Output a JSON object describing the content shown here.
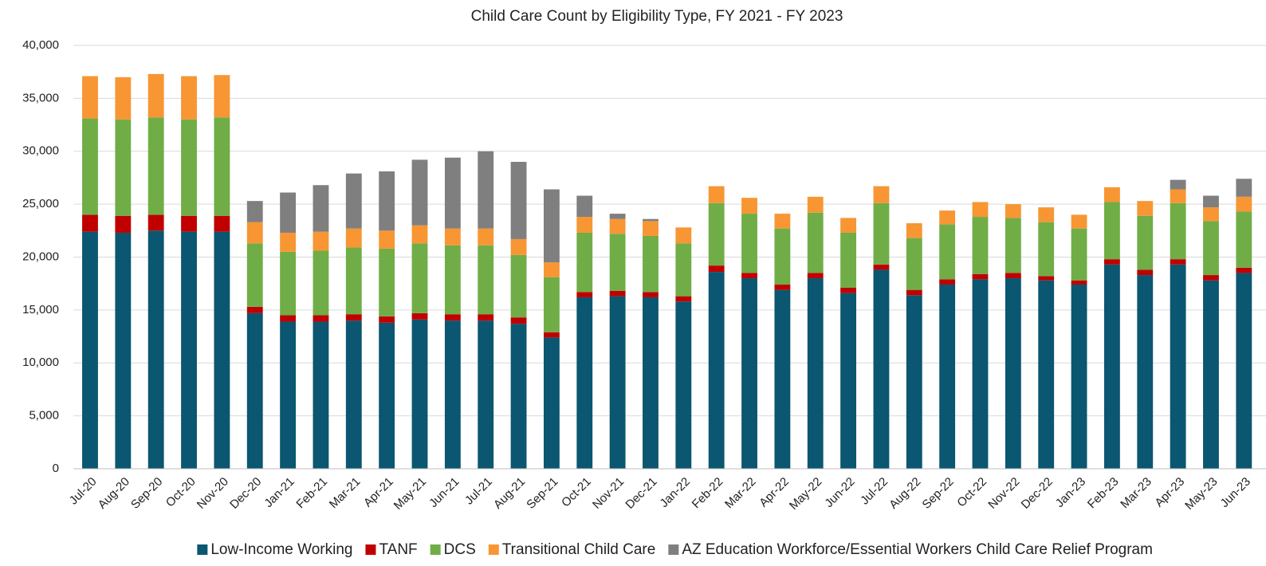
{
  "chart_data": {
    "type": "stacked-bar",
    "title": "Child Care Count by Eligibility Type, FY 2021 - FY 2023",
    "categories": [
      "Jul-20",
      "Aug-20",
      "Sep-20",
      "Oct-20",
      "Nov-20",
      "Dec-20",
      "Jan-21",
      "Feb-21",
      "Mar-21",
      "Apr-21",
      "May-21",
      "Jun-21",
      "Jul-21",
      "Aug-21",
      "Sep-21",
      "Oct-21",
      "Nov-21",
      "Dec-21",
      "Jan-22",
      "Feb-22",
      "Mar-22",
      "Apr-22",
      "May-22",
      "Jun-22",
      "Jul-22",
      "Aug-22",
      "Sep-22",
      "Oct-22",
      "Nov-22",
      "Dec-22",
      "Jan-23",
      "Feb-23",
      "Mar-23",
      "Apr-23",
      "May-23",
      "Jun-23"
    ],
    "series": [
      {
        "name": "Low-Income Working",
        "color": "#0b5670",
        "values": [
          22400,
          22300,
          22500,
          22400,
          22400,
          14700,
          13900,
          13900,
          14000,
          13800,
          14100,
          14000,
          14000,
          13700,
          12400,
          16200,
          16300,
          16200,
          15800,
          18600,
          18000,
          16900,
          18000,
          16600,
          18800,
          16400,
          17400,
          17900,
          18000,
          17800,
          17400,
          19300,
          18300,
          19300,
          17800,
          18500
        ]
      },
      {
        "name": "TANF",
        "color": "#c00000",
        "values": [
          1600,
          1600,
          1500,
          1500,
          1500,
          600,
          600,
          600,
          600,
          600,
          600,
          600,
          600,
          600,
          500,
          500,
          500,
          500,
          500,
          600,
          500,
          500,
          500,
          500,
          500,
          500,
          500,
          500,
          500,
          400,
          400,
          500,
          500,
          500,
          500,
          500
        ]
      },
      {
        "name": "DCS",
        "color": "#70ad47",
        "values": [
          9100,
          9100,
          9200,
          9100,
          9300,
          6000,
          6000,
          6100,
          6300,
          6400,
          6600,
          6500,
          6500,
          5900,
          5200,
          5600,
          5400,
          5300,
          5000,
          5900,
          5600,
          5300,
          5700,
          5200,
          5800,
          4900,
          5200,
          5400,
          5200,
          5100,
          4900,
          5400,
          5100,
          5300,
          5100,
          5300
        ]
      },
      {
        "name": "Transitional Child Care",
        "color": "#f79633",
        "values": [
          4000,
          4000,
          4100,
          4100,
          4000,
          2000,
          1800,
          1800,
          1800,
          1700,
          1700,
          1600,
          1600,
          1500,
          1400,
          1500,
          1400,
          1400,
          1500,
          1600,
          1500,
          1400,
          1500,
          1400,
          1600,
          1400,
          1300,
          1400,
          1300,
          1400,
          1300,
          1400,
          1400,
          1300,
          1300,
          1400
        ]
      },
      {
        "name": "AZ Education Workforce/Essential Workers Child Care Relief Program",
        "color": "#7f7f7f",
        "values": [
          0,
          0,
          0,
          0,
          0,
          2000,
          3800,
          4400,
          5200,
          5600,
          6200,
          6700,
          7300,
          7300,
          6900,
          2000,
          500,
          200,
          0,
          0,
          0,
          0,
          0,
          0,
          0,
          0,
          0,
          0,
          0,
          0,
          0,
          0,
          0,
          900,
          1100,
          1700
        ]
      }
    ],
    "ylim": [
      0,
      40000
    ],
    "yticks": [
      0,
      {
        "value": 5000,
        "label": "5,000"
      },
      {
        "value": 10000,
        "label": "10,000"
      },
      {
        "value": 15000,
        "label": "15,000"
      },
      {
        "value": 20000,
        "label": "20,000"
      },
      {
        "value": 25000,
        "label": "25,000"
      },
      {
        "value": 30000,
        "label": "30,000"
      },
      {
        "value": 35000,
        "label": "35,000"
      },
      {
        "value": 40000,
        "label": "40,000"
      }
    ],
    "grid": true,
    "legend": "bottom"
  }
}
